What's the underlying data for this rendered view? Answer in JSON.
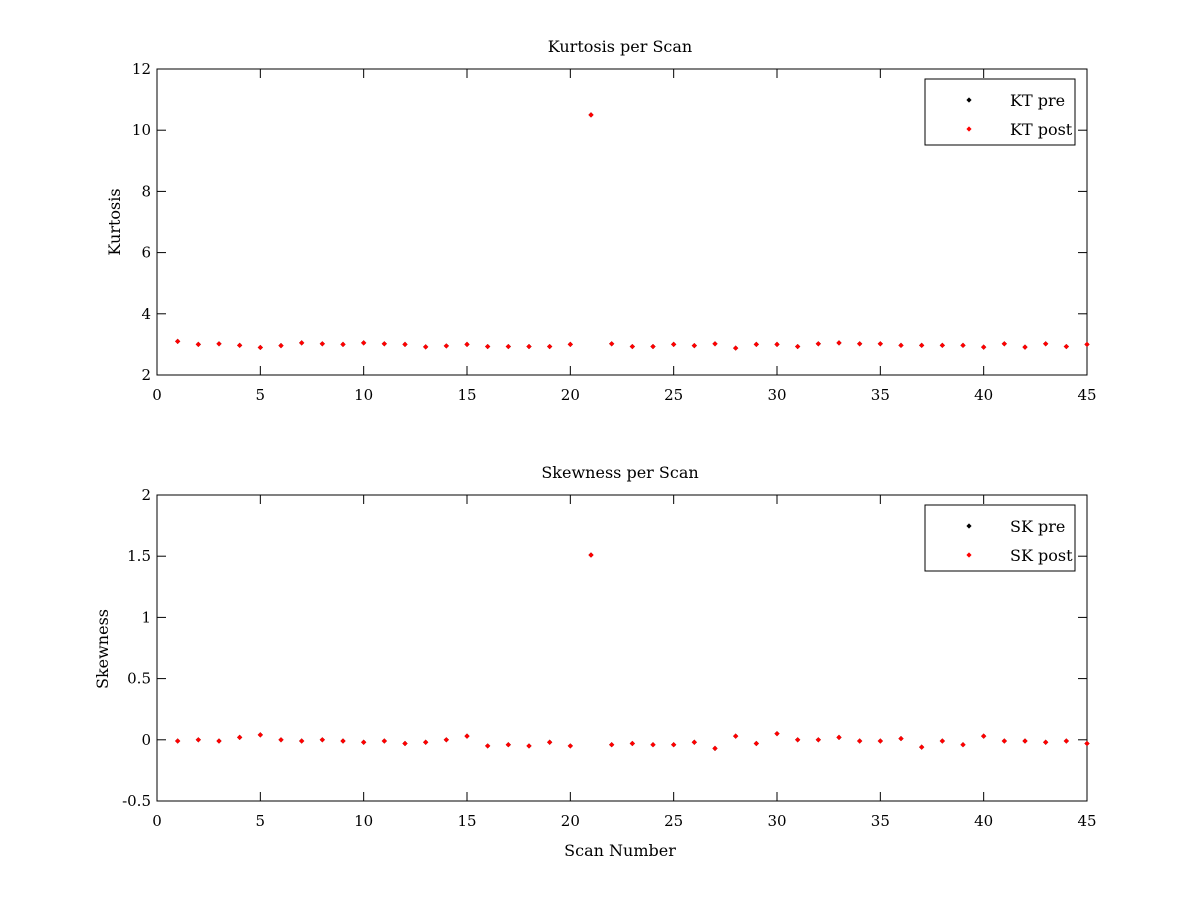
{
  "chart_data": [
    {
      "type": "scatter",
      "title": "Kurtosis per Scan",
      "xlabel": "",
      "ylabel": "Kurtosis",
      "xlim": [
        0,
        45
      ],
      "ylim": [
        2,
        12
      ],
      "xticks": [
        0,
        5,
        10,
        15,
        20,
        25,
        30,
        35,
        40,
        45
      ],
      "yticks": [
        2,
        4,
        6,
        8,
        10,
        12
      ],
      "grid": false,
      "legend_position": "top-right",
      "series": [
        {
          "name": "KT pre",
          "color": "#000000",
          "x": [
            1,
            2,
            3,
            4,
            5,
            6,
            7,
            8,
            9,
            10,
            11,
            12,
            13,
            14,
            15,
            16,
            17,
            18,
            19,
            20,
            21,
            22,
            23,
            24,
            25,
            26,
            27,
            28,
            29,
            30,
            31,
            32,
            33,
            34,
            35,
            36,
            37,
            38,
            39,
            40,
            41,
            42,
            43,
            44,
            45
          ],
          "y": [
            3.1,
            3.0,
            3.02,
            2.97,
            2.9,
            2.96,
            3.05,
            3.02,
            3.0,
            3.05,
            3.02,
            3.0,
            2.92,
            2.95,
            3.0,
            2.93,
            2.93,
            2.93,
            2.93,
            3.0,
            10.5,
            3.02,
            2.93,
            2.93,
            3.0,
            2.96,
            3.02,
            2.88,
            3.0,
            3.0,
            2.93,
            3.02,
            3.05,
            3.02,
            3.02,
            2.97,
            2.97,
            2.97,
            2.97,
            2.91,
            3.02,
            2.91,
            3.02,
            2.93,
            3.0
          ]
        },
        {
          "name": "KT post",
          "color": "#ff0000",
          "x": [
            1,
            2,
            3,
            4,
            5,
            6,
            7,
            8,
            9,
            10,
            11,
            12,
            13,
            14,
            15,
            16,
            17,
            18,
            19,
            20,
            21,
            22,
            23,
            24,
            25,
            26,
            27,
            28,
            29,
            30,
            31,
            32,
            33,
            34,
            35,
            36,
            37,
            38,
            39,
            40,
            41,
            42,
            43,
            44,
            45
          ],
          "y": [
            3.1,
            3.0,
            3.02,
            2.97,
            2.9,
            2.96,
            3.05,
            3.02,
            3.0,
            3.05,
            3.02,
            3.0,
            2.92,
            2.95,
            3.0,
            2.93,
            2.93,
            2.93,
            2.93,
            3.0,
            10.5,
            3.02,
            2.93,
            2.93,
            3.0,
            2.96,
            3.02,
            2.88,
            3.0,
            3.0,
            2.93,
            3.02,
            3.05,
            3.02,
            3.02,
            2.97,
            2.97,
            2.97,
            2.97,
            2.91,
            3.02,
            2.91,
            3.02,
            2.93,
            3.0
          ]
        }
      ]
    },
    {
      "type": "scatter",
      "title": "Skewness per Scan",
      "xlabel": "Scan Number",
      "ylabel": "Skewness",
      "xlim": [
        0,
        45
      ],
      "ylim": [
        -0.5,
        2
      ],
      "xticks": [
        0,
        5,
        10,
        15,
        20,
        25,
        30,
        35,
        40,
        45
      ],
      "yticks": [
        -0.5,
        0,
        0.5,
        1,
        1.5,
        2
      ],
      "grid": false,
      "legend_position": "top-right",
      "series": [
        {
          "name": "SK pre",
          "color": "#000000",
          "x": [
            1,
            2,
            3,
            4,
            5,
            6,
            7,
            8,
            9,
            10,
            11,
            12,
            13,
            14,
            15,
            16,
            17,
            18,
            19,
            20,
            21,
            22,
            23,
            24,
            25,
            26,
            27,
            28,
            29,
            30,
            31,
            32,
            33,
            34,
            35,
            36,
            37,
            38,
            39,
            40,
            41,
            42,
            43,
            44,
            45
          ],
          "y": [
            -0.01,
            0.0,
            -0.01,
            0.02,
            0.04,
            0.0,
            -0.01,
            0.0,
            -0.01,
            -0.02,
            -0.01,
            -0.03,
            -0.02,
            0.0,
            0.03,
            -0.05,
            -0.04,
            -0.05,
            -0.02,
            -0.05,
            1.51,
            -0.04,
            -0.03,
            -0.04,
            -0.04,
            -0.02,
            -0.07,
            0.03,
            -0.03,
            0.05,
            0.0,
            0.0,
            0.02,
            -0.01,
            -0.01,
            0.01,
            -0.06,
            -0.01,
            -0.04,
            0.03,
            -0.01,
            -0.01,
            -0.02,
            -0.01,
            -0.03
          ]
        },
        {
          "name": "SK post",
          "color": "#ff0000",
          "x": [
            1,
            2,
            3,
            4,
            5,
            6,
            7,
            8,
            9,
            10,
            11,
            12,
            13,
            14,
            15,
            16,
            17,
            18,
            19,
            20,
            21,
            22,
            23,
            24,
            25,
            26,
            27,
            28,
            29,
            30,
            31,
            32,
            33,
            34,
            35,
            36,
            37,
            38,
            39,
            40,
            41,
            42,
            43,
            44,
            45
          ],
          "y": [
            -0.01,
            0.0,
            -0.01,
            0.02,
            0.04,
            0.0,
            -0.01,
            0.0,
            -0.01,
            -0.02,
            -0.01,
            -0.03,
            -0.02,
            0.0,
            0.03,
            -0.05,
            -0.04,
            -0.05,
            -0.02,
            -0.05,
            1.51,
            -0.04,
            -0.03,
            -0.04,
            -0.04,
            -0.02,
            -0.07,
            0.03,
            -0.03,
            0.05,
            0.0,
            0.0,
            0.02,
            -0.01,
            -0.01,
            0.01,
            -0.06,
            -0.01,
            -0.04,
            0.03,
            -0.01,
            -0.01,
            -0.02,
            -0.01,
            -0.03
          ]
        }
      ]
    }
  ]
}
